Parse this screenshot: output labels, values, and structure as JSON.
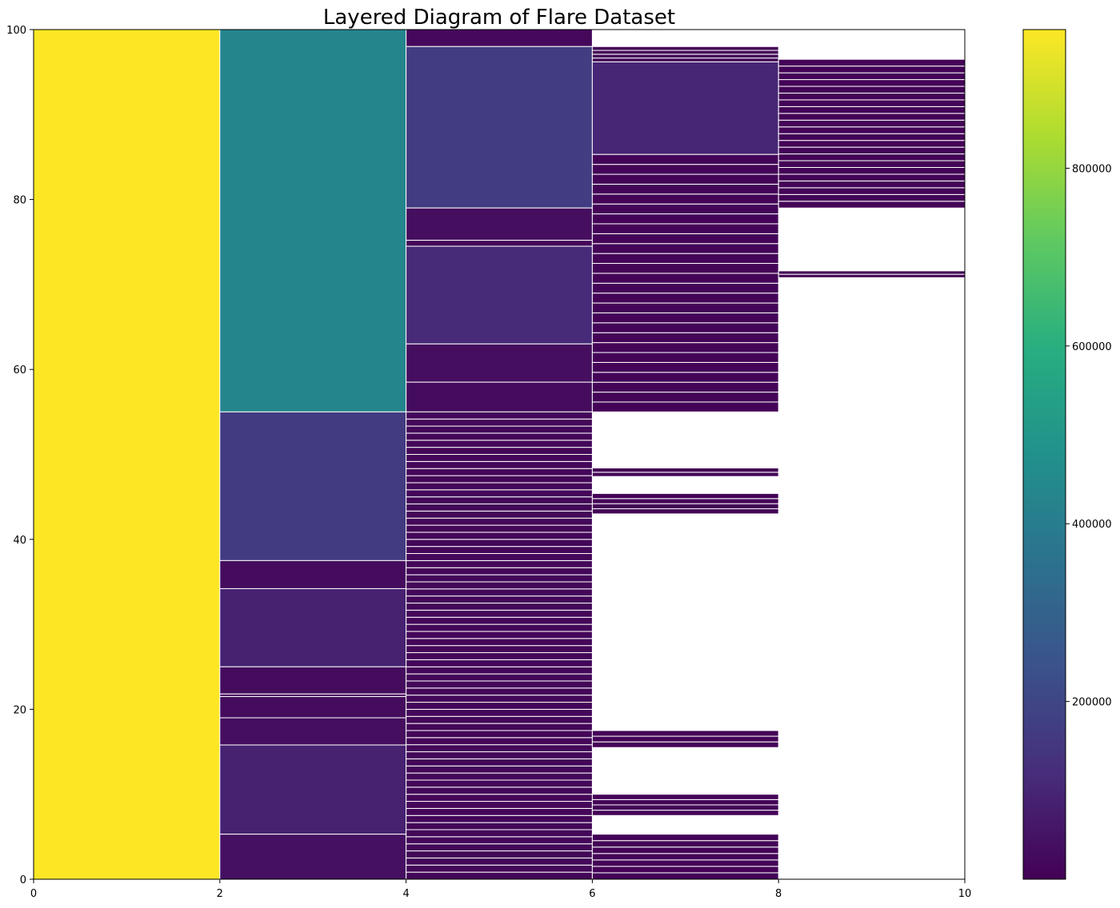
{
  "chart_data": {
    "type": "heatmap",
    "title": "Layered Diagram of Flare Dataset",
    "xlabel": "",
    "ylabel": "",
    "xlim": [
      0,
      10
    ],
    "ylim": [
      0,
      100
    ],
    "x_ticks": [
      0,
      2,
      4,
      6,
      8,
      10
    ],
    "y_ticks": [
      0,
      20,
      40,
      60,
      80,
      100
    ],
    "colorbar": {
      "colormap": "viridis",
      "range": [
        0,
        956000
      ],
      "ticks": [
        200000,
        400000,
        600000,
        800000
      ],
      "tick_labels": [
        "200000",
        "400000",
        "600000",
        "800000"
      ]
    },
    "grid": false,
    "layers": [
      {
        "x0": 0,
        "x1": 2,
        "rects": [
          [
            0,
            100,
            956000
          ]
        ]
      },
      {
        "x0": 2,
        "x1": 4,
        "rects": [
          [
            55,
            100,
            430000
          ],
          [
            37.5,
            55,
            165000
          ],
          [
            34.2,
            37.5,
            30000
          ],
          [
            25,
            34.2,
            90000
          ],
          [
            21.8,
            25,
            30000
          ],
          [
            21.5,
            21.8,
            20000
          ],
          [
            19,
            21.5,
            30000
          ],
          [
            15.8,
            19,
            35000
          ],
          [
            5.3,
            15.8,
            90000
          ],
          [
            0,
            5.3,
            40000
          ]
        ]
      },
      {
        "x0": 4,
        "x1": 6,
        "rects": [
          [
            98,
            100,
            20000
          ],
          [
            79,
            98,
            170000
          ],
          [
            75.2,
            79,
            35000
          ],
          [
            74.5,
            75.2,
            15000
          ],
          [
            63,
            74.5,
            110000
          ],
          [
            58.5,
            63,
            35000
          ],
          [
            55,
            58.5,
            30000
          ]
        ],
        "bands": {
          "y0": 0,
          "y1": 55,
          "count": 66,
          "value": 15000
        }
      },
      {
        "x0": 6,
        "x1": 8,
        "rects": [
          [
            85.3,
            96.2,
            100000
          ]
        ],
        "bands_list": [
          {
            "y0": 96.2,
            "y1": 98,
            "count": 4,
            "value": 10000
          },
          {
            "y0": 55,
            "y1": 85.3,
            "count": 26,
            "value": 12000
          },
          {
            "y0": 47.4,
            "y1": 48.4,
            "count": 2,
            "value": 8000
          },
          {
            "y0": 43,
            "y1": 45.4,
            "count": 4,
            "value": 8000
          },
          {
            "y0": 15.5,
            "y1": 17.5,
            "count": 3,
            "value": 8000
          },
          {
            "y0": 7.5,
            "y1": 10,
            "count": 4,
            "value": 8000
          },
          {
            "y0": 0,
            "y1": 5.3,
            "count": 7,
            "value": 8000
          }
        ]
      },
      {
        "x0": 8,
        "x1": 10,
        "rects": [],
        "bands_list": [
          {
            "y0": 79,
            "y1": 96.5,
            "count": 22,
            "value": 8000
          },
          {
            "y0": 70.8,
            "y1": 71.6,
            "count": 2,
            "value": 6000
          }
        ]
      }
    ]
  }
}
